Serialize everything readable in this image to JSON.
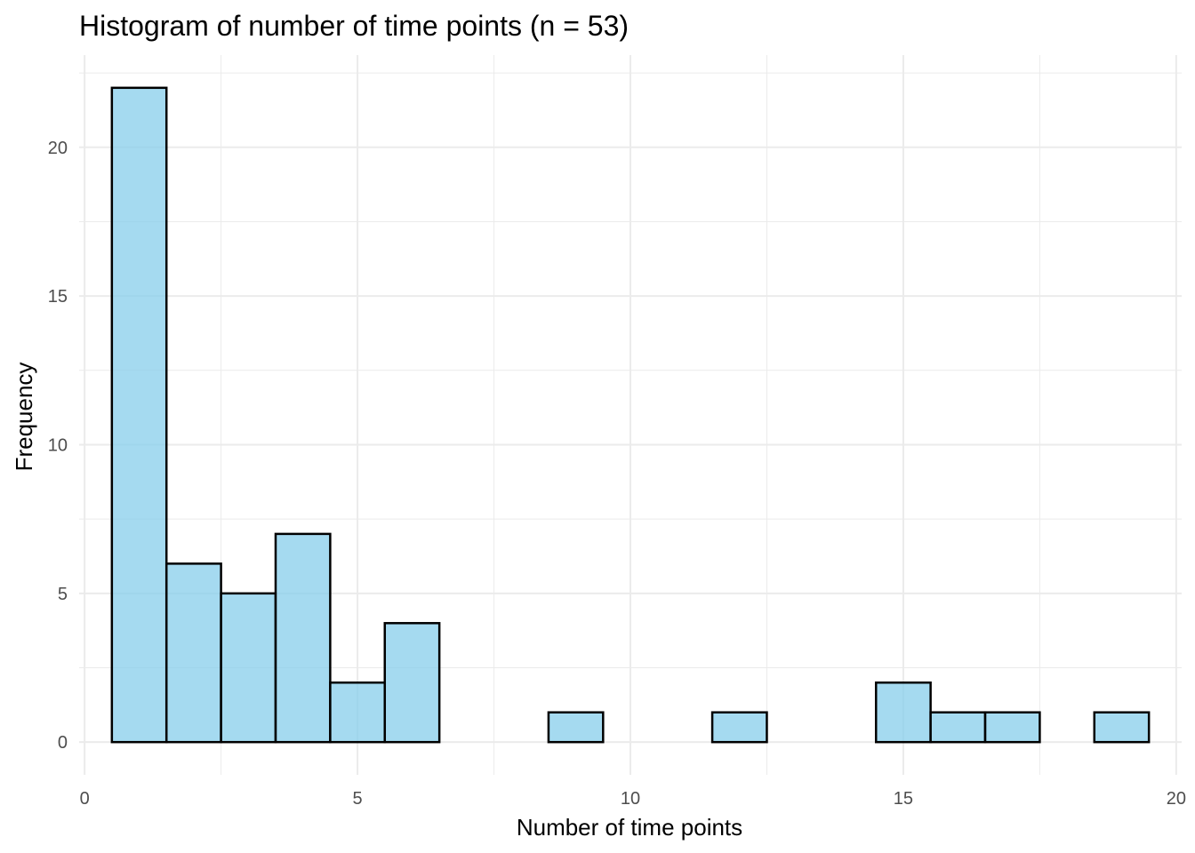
{
  "chart_data": {
    "type": "bar",
    "subtype": "histogram",
    "title": "Histogram of number of time points (n = 53)",
    "xlabel": "Number of time points",
    "ylabel": "Frequency",
    "xlim": [
      -0.1,
      20.1
    ],
    "ylim": [
      -1.1,
      23.1
    ],
    "x_ticks": [
      0,
      5,
      10,
      15,
      20
    ],
    "x_tick_labels": [
      "0",
      "5",
      "10",
      "15",
      "20"
    ],
    "y_ticks": [
      0,
      5,
      10,
      15,
      20
    ],
    "y_tick_labels": [
      "0",
      "5",
      "10",
      "15",
      "20"
    ],
    "x_minor_ticks": [
      2.5,
      7.5,
      12.5,
      17.5
    ],
    "y_minor_ticks": [
      2.5,
      7.5,
      12.5,
      17.5,
      22.5
    ],
    "grid": true,
    "legend": "none",
    "bar_fill": "#87ceeb",
    "bar_fill_opacity": 0.75,
    "bar_outline": "#000000",
    "bins": [
      {
        "x0": 0.5,
        "x1": 1.5,
        "count": 22
      },
      {
        "x0": 1.5,
        "x1": 2.5,
        "count": 6
      },
      {
        "x0": 2.5,
        "x1": 3.5,
        "count": 5
      },
      {
        "x0": 3.5,
        "x1": 4.5,
        "count": 7
      },
      {
        "x0": 4.5,
        "x1": 5.5,
        "count": 2
      },
      {
        "x0": 5.5,
        "x1": 6.5,
        "count": 4
      },
      {
        "x0": 6.5,
        "x1": 7.5,
        "count": 0
      },
      {
        "x0": 7.5,
        "x1": 8.5,
        "count": 0
      },
      {
        "x0": 8.5,
        "x1": 9.5,
        "count": 1
      },
      {
        "x0": 9.5,
        "x1": 10.5,
        "count": 0
      },
      {
        "x0": 10.5,
        "x1": 11.5,
        "count": 0
      },
      {
        "x0": 11.5,
        "x1": 12.5,
        "count": 1
      },
      {
        "x0": 12.5,
        "x1": 13.5,
        "count": 0
      },
      {
        "x0": 13.5,
        "x1": 14.5,
        "count": 0
      },
      {
        "x0": 14.5,
        "x1": 15.5,
        "count": 2
      },
      {
        "x0": 15.5,
        "x1": 16.5,
        "count": 1
      },
      {
        "x0": 16.5,
        "x1": 17.5,
        "count": 1
      },
      {
        "x0": 17.5,
        "x1": 18.5,
        "count": 0
      },
      {
        "x0": 18.5,
        "x1": 19.5,
        "count": 1
      }
    ]
  }
}
